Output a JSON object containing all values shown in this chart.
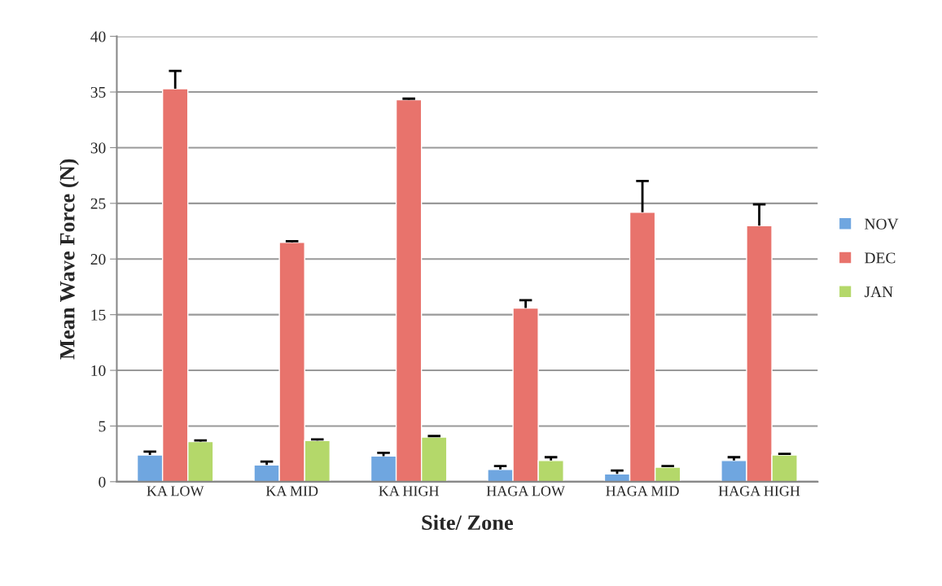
{
  "chart_data": {
    "type": "bar",
    "xlabel": "Site/ Zone",
    "ylabel": "Mean Wave Force (N)",
    "categories": [
      "KA LOW",
      "KA MID",
      "KA HIGH",
      "HAGA LOW",
      "HAGA MID",
      "HAGA HIGH"
    ],
    "series": [
      {
        "name": "NOV",
        "color": "#6fa6e0",
        "values": [
          2.4,
          1.5,
          2.3,
          1.1,
          0.7,
          1.9
        ],
        "errors": [
          [
            2.4,
            2.7
          ],
          [
            1.5,
            1.8
          ],
          [
            2.3,
            2.6
          ],
          [
            1.1,
            1.4
          ],
          [
            0.7,
            1.0
          ],
          [
            1.9,
            2.2
          ]
        ]
      },
      {
        "name": "DEC",
        "color": "#e8736c",
        "values": [
          35.3,
          21.5,
          34.3,
          15.6,
          24.2,
          23.0
        ],
        "errors": [
          [
            35.3,
            36.9
          ],
          [
            21.5,
            21.6
          ],
          [
            34.3,
            34.4
          ],
          [
            15.6,
            16.3
          ],
          [
            24.2,
            27.0
          ],
          [
            23.0,
            24.9
          ]
        ]
      },
      {
        "name": "JAN",
        "color": "#b4d86a",
        "values": [
          3.6,
          3.7,
          4.0,
          1.9,
          1.3,
          2.4
        ],
        "errors": [
          [
            3.6,
            3.7
          ],
          [
            3.7,
            3.8
          ],
          [
            4.0,
            4.1
          ],
          [
            1.9,
            2.2
          ],
          [
            1.3,
            1.4
          ],
          [
            2.4,
            2.5
          ]
        ]
      }
    ],
    "ylim": [
      0,
      40
    ],
    "yticks": [
      0,
      5,
      10,
      15,
      20,
      25,
      30,
      35,
      40
    ],
    "grid": "y",
    "legend": "right"
  }
}
